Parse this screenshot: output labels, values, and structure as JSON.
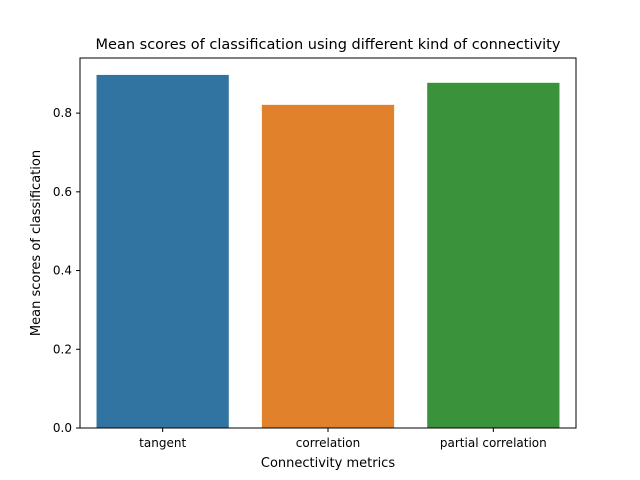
{
  "chart_data": {
    "type": "bar",
    "title": "Mean scores of classification using different kind of connectivity",
    "xlabel": "Connectivity metrics",
    "ylabel": "Mean scores of classification",
    "categories": [
      "tangent",
      "correlation",
      "partial correlation"
    ],
    "values": [
      0.897,
      0.821,
      0.877
    ],
    "colors": [
      "#3274a1",
      "#e1812c",
      "#3a923a"
    ],
    "ylim": [
      0,
      0.94
    ],
    "yticks": [
      0.0,
      0.2,
      0.4,
      0.6,
      0.8
    ],
    "ytick_labels": [
      "0.0",
      "0.2",
      "0.4",
      "0.6",
      "0.8"
    ],
    "grid": false,
    "legend": "none"
  }
}
